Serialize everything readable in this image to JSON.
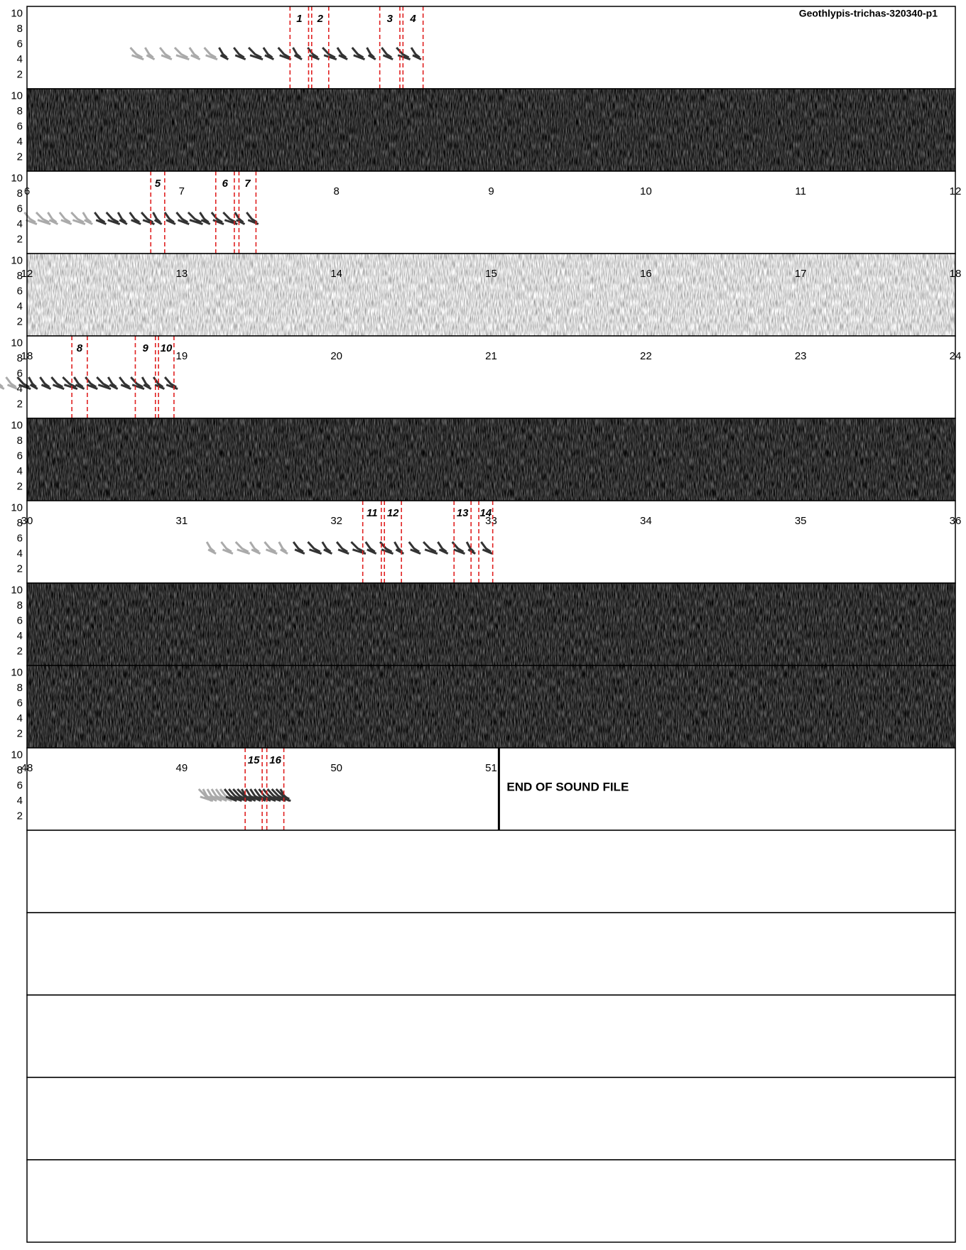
{
  "title": "Geothlypis-trichas-320340-p1",
  "yticks": [
    2,
    4,
    6,
    8,
    10
  ],
  "ylim": [
    0.2,
    11
  ],
  "rows": [
    {
      "kind": "light",
      "xlim": [
        0,
        6
      ],
      "xticks": [],
      "annotations": [
        {
          "label": 1,
          "start": 1.7,
          "end": 1.82
        },
        {
          "label": 2,
          "start": 1.84,
          "end": 1.95
        },
        {
          "label": 3,
          "start": 2.28,
          "end": 2.41
        },
        {
          "label": 4,
          "start": 2.43,
          "end": 2.56
        }
      ]
    },
    {
      "kind": "dark",
      "xlim": [
        0,
        6
      ],
      "xticks": []
    },
    {
      "kind": "light",
      "xlim": [
        6,
        12
      ],
      "xticks": [
        6,
        7,
        8,
        9,
        10,
        11,
        12
      ],
      "annotations": [
        {
          "label": 5,
          "start": 6.8,
          "end": 6.89
        },
        {
          "label": 6,
          "start": 7.22,
          "end": 7.34
        },
        {
          "label": 7,
          "start": 7.37,
          "end": 7.48
        }
      ]
    },
    {
      "kind": "faint",
      "xlim": [
        12,
        18
      ],
      "xticks": [
        12,
        13,
        14,
        15,
        16,
        17,
        18
      ]
    },
    {
      "kind": "light",
      "xlim": [
        18,
        24
      ],
      "xticks": [
        18,
        19,
        20,
        21,
        22,
        23,
        24
      ],
      "annotations": [
        {
          "label": 8,
          "start": 18.29,
          "end": 18.39
        },
        {
          "label": 9,
          "start": 18.7,
          "end": 18.83
        },
        {
          "label": 10,
          "start": 18.85,
          "end": 18.95
        }
      ]
    },
    {
      "kind": "dark",
      "xlim": [
        24,
        30
      ],
      "xticks": []
    },
    {
      "kind": "light",
      "xlim": [
        30,
        36
      ],
      "xticks": [
        30,
        31,
        32,
        33,
        34,
        35,
        36
      ],
      "annotations": [
        {
          "label": 11,
          "start": 32.17,
          "end": 32.29
        },
        {
          "label": 12,
          "start": 32.31,
          "end": 32.42
        },
        {
          "label": 13,
          "start": 32.76,
          "end": 32.87
        },
        {
          "label": 14,
          "start": 32.92,
          "end": 33.01
        }
      ]
    },
    {
      "kind": "dark",
      "xlim": [
        36,
        42
      ],
      "xticks": []
    },
    {
      "kind": "dark",
      "xlim": [
        42,
        48
      ],
      "xticks": []
    },
    {
      "kind": "light",
      "xlim": [
        48,
        54
      ],
      "xticks": [
        48,
        49,
        50,
        51
      ],
      "annotations": [
        {
          "label": 15,
          "start": 49.41,
          "end": 49.52
        },
        {
          "label": 16,
          "start": 49.55,
          "end": 49.66
        }
      ],
      "end": 51.05,
      "end_label": "END OF SOUND FILE"
    },
    {
      "kind": "blank",
      "xlim": [
        54,
        60
      ],
      "xticks": []
    },
    {
      "kind": "blank",
      "xlim": [
        60,
        66
      ],
      "xticks": []
    },
    {
      "kind": "blank",
      "xlim": [
        66,
        72
      ],
      "xticks": []
    },
    {
      "kind": "blank",
      "xlim": [
        72,
        78
      ],
      "xticks": []
    },
    {
      "kind": "blank",
      "xlim": [
        78,
        84
      ],
      "xticks": []
    }
  ]
}
